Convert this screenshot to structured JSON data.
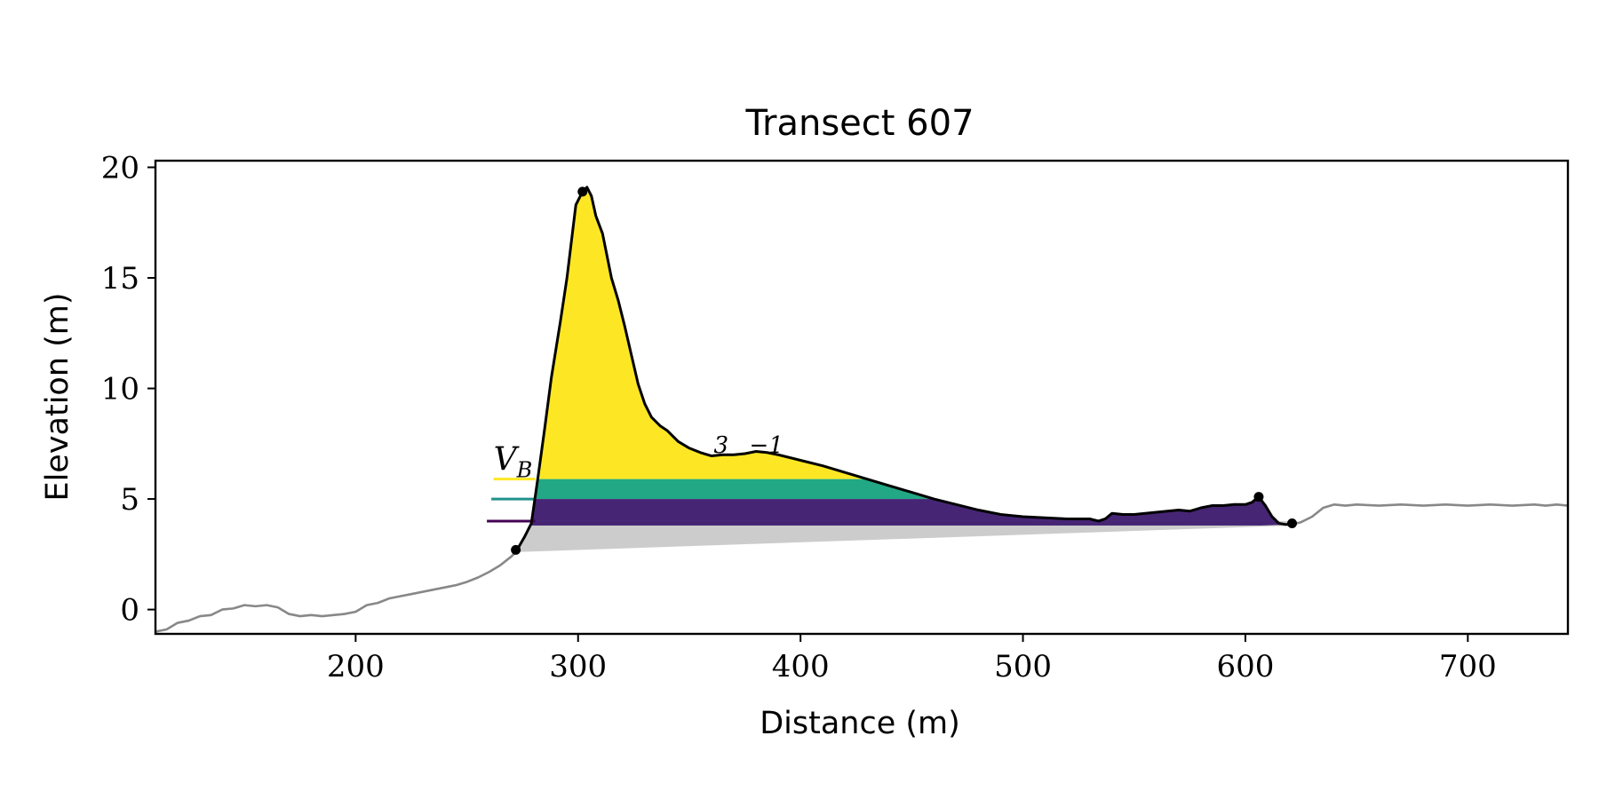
{
  "chart_data": {
    "type": "area",
    "title": "Transect 607",
    "xlabel": "Distance (m)",
    "ylabel": "Elevation (m)",
    "xlim": [
      110,
      745
    ],
    "ylim": [
      -1.1,
      20.3
    ],
    "x_ticks": [
      200,
      300,
      400,
      500,
      600,
      700
    ],
    "y_ticks": [
      0,
      5,
      10,
      15,
      20
    ],
    "x_tick_labels": [
      "200",
      "300",
      "400",
      "500",
      "600",
      "700"
    ],
    "y_tick_labels": [
      "0",
      "5",
      "10",
      "15",
      "20"
    ],
    "grid": false,
    "legend": "none",
    "annotations": [
      {
        "text": "V",
        "subscript": "B",
        "x": 262,
        "y": 6.3
      },
      {
        "text": "3",
        "x": 361,
        "y": 7.1
      },
      {
        "text": "−1",
        "x": 377,
        "y": 7.1
      }
    ],
    "level_lines": [
      {
        "y": 5.9,
        "x_start": 262,
        "color": "#fde725"
      },
      {
        "y": 5.0,
        "x_start": 261,
        "color": "#21918c"
      },
      {
        "y": 4.0,
        "x_start": 259,
        "color": "#440154"
      }
    ],
    "layers": [
      {
        "y_bottom": 5.9,
        "color": "#fde725"
      },
      {
        "y_bottom": 5.0,
        "y_top": 5.9,
        "color": "#22a884"
      },
      {
        "y_bottom": 4.0,
        "y_top": 5.0,
        "color": "#472575"
      },
      {
        "y_bottom": 3.8,
        "y_top": 4.0,
        "color": "#472575"
      }
    ],
    "base_wedge": {
      "from": [
        272,
        2.6
      ],
      "to": [
        621,
        3.8
      ],
      "color": "#cccccc"
    },
    "key_points": [
      {
        "x": 272,
        "y": 2.7
      },
      {
        "x": 302,
        "y": 18.9
      },
      {
        "x": 606,
        "y": 5.1
      },
      {
        "x": 621,
        "y": 3.9
      }
    ],
    "series": [
      {
        "color": "#888888",
        "x": [
          110,
          115,
          120,
          125,
          130,
          135,
          140,
          145,
          150,
          155,
          160,
          165,
          170,
          175,
          180,
          185,
          190,
          195,
          200,
          205,
          210,
          215,
          220,
          225,
          230,
          235,
          240,
          245,
          250,
          255,
          260,
          265,
          270,
          272
        ],
        "y": [
          -1.0,
          -0.9,
          -0.6,
          -0.5,
          -0.3,
          -0.25,
          0.0,
          0.05,
          0.2,
          0.15,
          0.2,
          0.1,
          -0.2,
          -0.3,
          -0.25,
          -0.3,
          -0.25,
          -0.2,
          -0.1,
          0.2,
          0.3,
          0.5,
          0.6,
          0.7,
          0.8,
          0.9,
          1.0,
          1.1,
          1.25,
          1.45,
          1.7,
          2.0,
          2.4,
          2.6
        ]
      },
      {
        "color": "#000000",
        "x": [
          272,
          276,
          279,
          282,
          285,
          288,
          292,
          295,
          299,
          302,
          304,
          306,
          308,
          311,
          315,
          318,
          321,
          324,
          327,
          330,
          333,
          337,
          340,
          345,
          350,
          355,
          360,
          365,
          370,
          375,
          380,
          385,
          390,
          400,
          410,
          420,
          430,
          440,
          450,
          460,
          470,
          480,
          490,
          500,
          510,
          520,
          530,
          534,
          537,
          540,
          545,
          550,
          555,
          560,
          565,
          570,
          575,
          580,
          585,
          590,
          595,
          600,
          603,
          606,
          609,
          612,
          615,
          618,
          621
        ],
        "y": [
          2.6,
          3.3,
          3.9,
          6.0,
          8.2,
          10.5,
          13.0,
          15.0,
          18.3,
          18.9,
          19.1,
          18.7,
          17.8,
          17.0,
          15.0,
          14.0,
          12.8,
          11.5,
          10.2,
          9.3,
          8.7,
          8.3,
          8.1,
          7.6,
          7.3,
          7.1,
          6.95,
          7.0,
          7.0,
          7.05,
          7.15,
          7.1,
          7.0,
          6.75,
          6.5,
          6.2,
          5.9,
          5.6,
          5.3,
          5.0,
          4.75,
          4.5,
          4.3,
          4.2,
          4.15,
          4.1,
          4.1,
          4.0,
          4.1,
          4.35,
          4.3,
          4.3,
          4.35,
          4.4,
          4.45,
          4.5,
          4.45,
          4.6,
          4.7,
          4.7,
          4.75,
          4.75,
          4.85,
          5.1,
          4.7,
          4.2,
          3.9,
          3.85,
          3.85
        ]
      },
      {
        "color": "#888888",
        "x": [
          621,
          625,
          630,
          635,
          640,
          645,
          650,
          660,
          670,
          680,
          690,
          700,
          710,
          720,
          730,
          735,
          740,
          745
        ],
        "y": [
          3.85,
          3.95,
          4.2,
          4.6,
          4.75,
          4.7,
          4.75,
          4.7,
          4.75,
          4.7,
          4.75,
          4.7,
          4.75,
          4.7,
          4.75,
          4.7,
          4.75,
          4.7
        ]
      }
    ]
  }
}
